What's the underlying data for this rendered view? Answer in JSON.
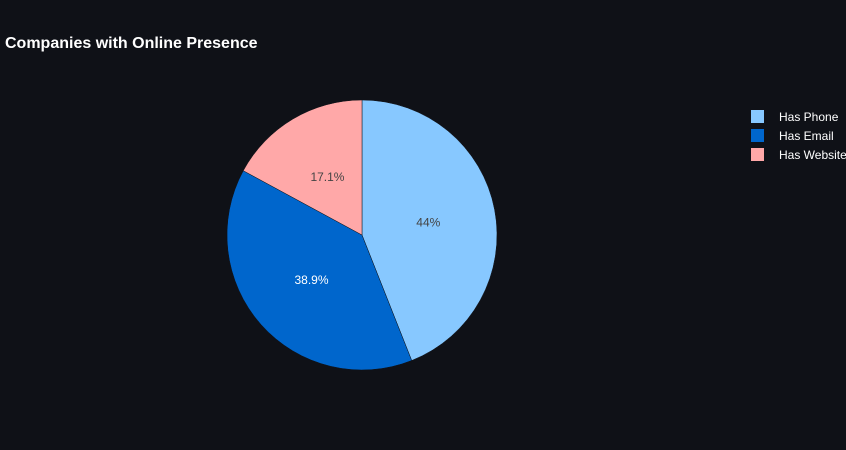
{
  "chart_data": {
    "type": "pie",
    "title": "Companies with Online Presence",
    "labels": [
      "Has Phone",
      "Has Email",
      "Has Website"
    ],
    "values": [
      44,
      38.9,
      17.1
    ],
    "value_labels": [
      "44%",
      "38.9%",
      "17.1%"
    ],
    "colors": [
      "#87c8ff",
      "#0066cc",
      "#ffa8a8"
    ],
    "label_colors": [
      "#444444",
      "#ffffff",
      "#444444"
    ],
    "direction": "clockwise",
    "start": "top",
    "legend_position": "right"
  }
}
